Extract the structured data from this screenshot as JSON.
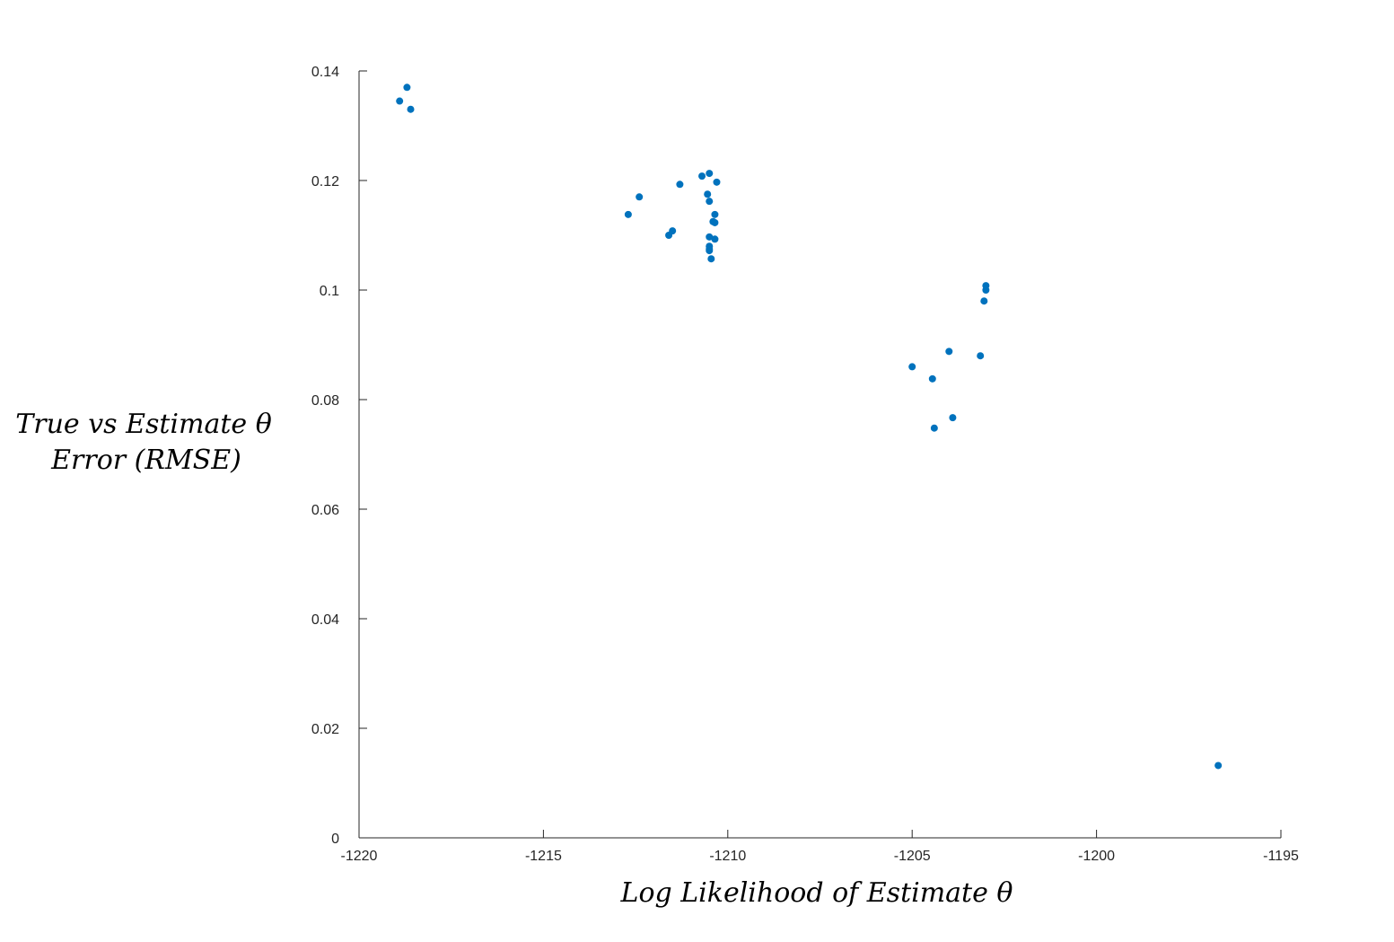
{
  "chart_data": {
    "type": "scatter",
    "title": "",
    "xlabel": "Log Likelihood of Estimate θ",
    "ylabel_lines": [
      "True vs Estimate θ",
      "Error (RMSE)"
    ],
    "xlim": [
      -1220,
      -1195
    ],
    "ylim": [
      0,
      0.14
    ],
    "x_ticks": [
      -1220,
      -1215,
      -1210,
      -1205,
      -1200,
      -1195
    ],
    "x_tick_labels": [
      "-1220",
      "-1215",
      "-1210",
      "-1205",
      "-1200",
      "-1195"
    ],
    "y_ticks": [
      0,
      0.02,
      0.04,
      0.06,
      0.08,
      0.1,
      0.12,
      0.14
    ],
    "y_tick_labels": [
      "0",
      "0.02",
      "0.04",
      "0.06",
      "0.08",
      "0.1",
      "0.12",
      "0.14"
    ],
    "grid": false,
    "marker_color": "#0072BD",
    "series": [
      {
        "x": [
          -1218.7,
          -1218.9,
          -1218.6,
          -1212.7,
          -1212.4,
          -1211.6,
          -1211.5,
          -1211.3,
          -1210.7,
          -1210.5,
          -1210.3,
          -1210.55,
          -1210.5,
          -1210.35,
          -1210.4,
          -1210.35,
          -1210.5,
          -1210.35,
          -1210.5,
          -1210.5,
          -1210.5,
          -1210.45,
          -1205.0,
          -1204.45,
          -1204.4,
          -1204.0,
          -1203.9,
          -1203.15,
          -1203.05,
          -1203.0,
          -1203.0,
          -1196.7
        ],
        "y": [
          0.137,
          0.1345,
          0.133,
          0.1138,
          0.117,
          0.11,
          0.1108,
          0.1193,
          0.1208,
          0.1213,
          0.1197,
          0.1175,
          0.1162,
          0.1138,
          0.1125,
          0.1123,
          0.1097,
          0.1093,
          0.108,
          0.1075,
          0.1072,
          0.1057,
          0.086,
          0.0838,
          0.0748,
          0.0888,
          0.0767,
          0.088,
          0.098,
          0.1,
          0.1008,
          0.0132
        ]
      }
    ]
  }
}
